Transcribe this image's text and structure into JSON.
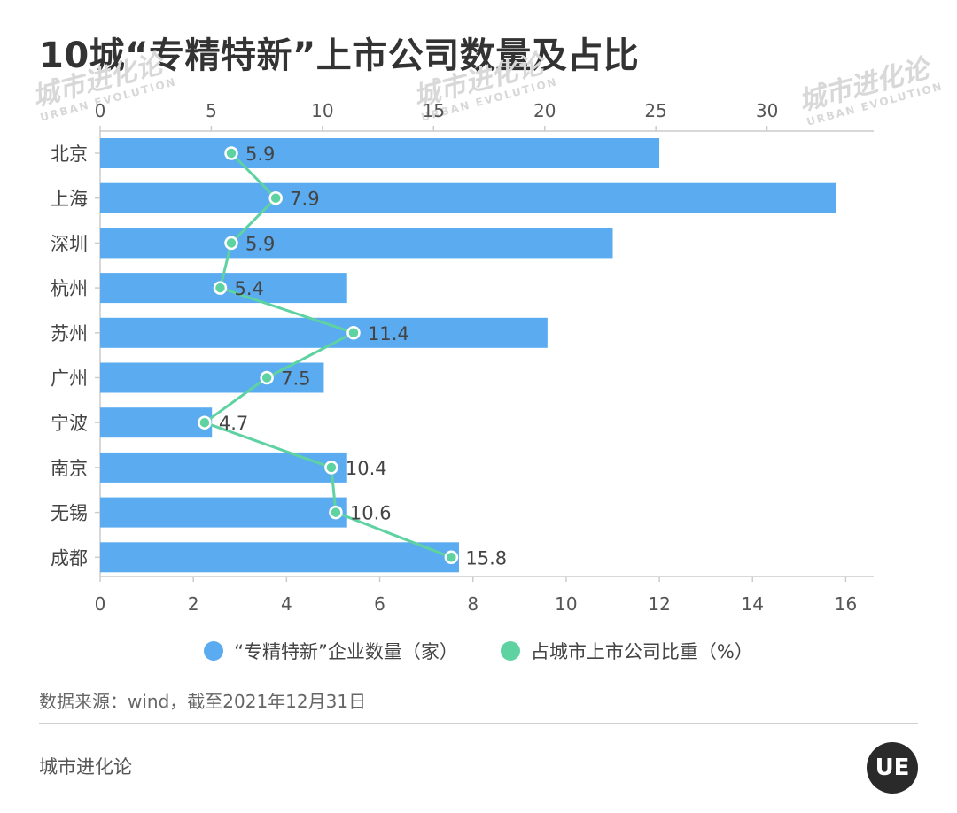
{
  "title": "10城“专精特新”上市公司数量及占比",
  "chart_data": {
    "type": "bar",
    "orientation": "horizontal",
    "categories": [
      "北京",
      "上海",
      "深圳",
      "杭州",
      "苏州",
      "广州",
      "宁波",
      "南京",
      "无锡",
      "成都"
    ],
    "series": [
      {
        "name": "“专精特新”企业数量（家）",
        "type": "bar",
        "axis": "bottom",
        "values": [
          12,
          15.8,
          11,
          5.3,
          9.6,
          4.8,
          2.4,
          5.3,
          5.3,
          7.7
        ],
        "color": "#5aabf0"
      },
      {
        "name": "占城市上市公司比重（%）",
        "type": "line",
        "axis": "top",
        "values": [
          5.9,
          7.9,
          5.9,
          5.4,
          11.4,
          7.5,
          4.7,
          10.4,
          10.6,
          15.8
        ],
        "labels": [
          "5.9",
          "7.9",
          "5.9",
          "5.4",
          "11.4",
          "7.5",
          "4.7",
          "10.4",
          "10.6",
          "15.8"
        ],
        "color": "#5fd2a2"
      }
    ],
    "x_bottom": {
      "range": [
        0,
        16.6
      ],
      "ticks": [
        "0",
        "2",
        "4",
        "6",
        "8",
        "10",
        "12",
        "14",
        "16"
      ]
    },
    "x_top": {
      "range": [
        0,
        34.8
      ],
      "ticks": [
        "0",
        "5",
        "10",
        "15",
        "20",
        "25",
        "30"
      ]
    }
  },
  "legend": {
    "bar_label": "“专精特新”企业数量（家）",
    "line_label": "占城市上市公司比重（%）"
  },
  "source": "数据来源：wind，截至2021年12月31日",
  "brand": "城市进化论",
  "watermark": {
    "text": "城市进化论",
    "sub": "URBAN EVOLUTION"
  },
  "logo_text": "UE",
  "colors": {
    "bar": "#5aabf0",
    "line": "#5fd2a2"
  }
}
